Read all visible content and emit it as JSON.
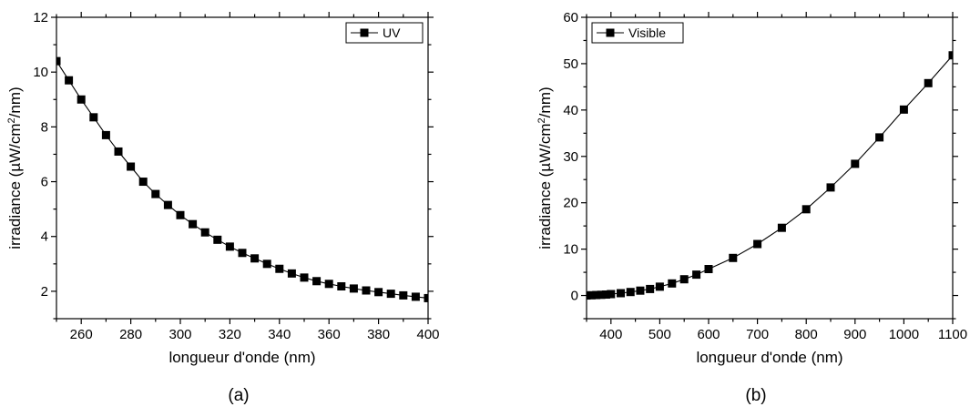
{
  "chart_data": [
    {
      "type": "line",
      "caption": "(a)",
      "xlabel": "longueur d'onde (nm)",
      "ylabel_parts": [
        "irradiance (µW/cm",
        "2",
        "/nm)"
      ],
      "xlim": [
        250,
        400
      ],
      "ylim": [
        1,
        12
      ],
      "xticks": [
        260,
        280,
        300,
        320,
        340,
        360,
        380,
        400
      ],
      "yticks": [
        2,
        4,
        6,
        8,
        10,
        12
      ],
      "legend_position": "top-right",
      "series": [
        {
          "name": "UV",
          "x": [
            250,
            255,
            260,
            265,
            270,
            275,
            280,
            285,
            290,
            295,
            300,
            305,
            310,
            315,
            320,
            325,
            330,
            335,
            340,
            345,
            350,
            355,
            360,
            365,
            370,
            375,
            380,
            385,
            390,
            395,
            400
          ],
          "y": [
            10.4,
            9.7,
            9.0,
            8.35,
            7.7,
            7.1,
            6.55,
            6.0,
            5.55,
            5.15,
            4.78,
            4.45,
            4.15,
            3.88,
            3.63,
            3.4,
            3.2,
            3.0,
            2.82,
            2.65,
            2.5,
            2.37,
            2.27,
            2.18,
            2.1,
            2.03,
            1.97,
            1.91,
            1.85,
            1.8,
            1.75
          ]
        }
      ]
    },
    {
      "type": "line",
      "caption": "(b)",
      "xlabel": "longueur d'onde (nm)",
      "ylabel_parts": [
        "irradiance (µW/cm",
        "2",
        "/nm)"
      ],
      "xlim": [
        350,
        1100
      ],
      "ylim": [
        -5,
        60
      ],
      "xticks": [
        400,
        500,
        600,
        700,
        800,
        900,
        1000,
        1100
      ],
      "yticks": [
        0,
        10,
        20,
        30,
        40,
        50,
        60
      ],
      "legend_position": "top-left",
      "series": [
        {
          "name": "Visible",
          "x": [
            350,
            360,
            370,
            380,
            390,
            400,
            420,
            440,
            460,
            480,
            500,
            525,
            550,
            575,
            600,
            650,
            700,
            750,
            800,
            850,
            900,
            950,
            1000,
            1050,
            1100
          ],
          "y": [
            0.0,
            0.05,
            0.1,
            0.15,
            0.2,
            0.3,
            0.5,
            0.75,
            1.05,
            1.4,
            1.9,
            2.6,
            3.5,
            4.5,
            5.7,
            8.1,
            11.1,
            14.6,
            18.6,
            23.3,
            28.4,
            34.1,
            40.1,
            45.8,
            51.8
          ]
        }
      ]
    }
  ]
}
